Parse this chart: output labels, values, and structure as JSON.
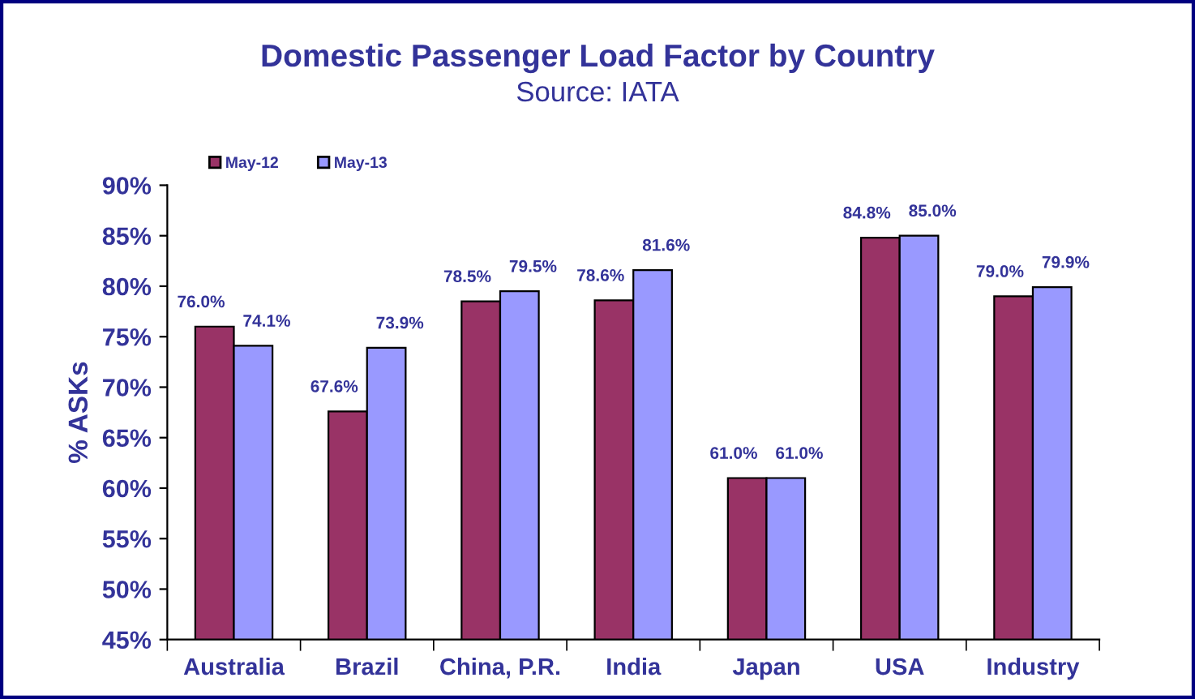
{
  "chart_data": {
    "type": "bar",
    "title": "Domestic Passenger Load Factor by Country",
    "subtitle": "Source: IATA",
    "ylabel": "% ASKs",
    "categories": [
      "Australia",
      "Brazil",
      "China, P.R.",
      "India",
      "Japan",
      "USA",
      "Industry"
    ],
    "series": [
      {
        "name": "May-12",
        "color": "#993366",
        "values": [
          76.0,
          67.6,
          78.5,
          78.6,
          61.0,
          84.8,
          79.0
        ],
        "value_labels": [
          "76.0%",
          "67.6%",
          "78.5%",
          "78.6%",
          "61.0%",
          "84.8%",
          "79.0%"
        ]
      },
      {
        "name": "May-13",
        "color": "#9999ff",
        "values": [
          74.1,
          73.9,
          79.5,
          81.6,
          61.0,
          85.0,
          79.9
        ],
        "value_labels": [
          "74.1%",
          "73.9%",
          "79.5%",
          "81.6%",
          "61.0%",
          "85.0%",
          "79.9%"
        ]
      }
    ],
    "ylim": [
      45,
      90
    ],
    "yticks": [
      {
        "value": 45,
        "label": "45%"
      },
      {
        "value": 50,
        "label": "50%"
      },
      {
        "value": 55,
        "label": "55%"
      },
      {
        "value": 60,
        "label": "60%"
      },
      {
        "value": 65,
        "label": "65%"
      },
      {
        "value": 70,
        "label": "70%"
      },
      {
        "value": 75,
        "label": "75%"
      },
      {
        "value": 80,
        "label": "80%"
      },
      {
        "value": 85,
        "label": "85%"
      },
      {
        "value": 90,
        "label": "90%"
      }
    ],
    "grid": false,
    "legend": "top left"
  }
}
